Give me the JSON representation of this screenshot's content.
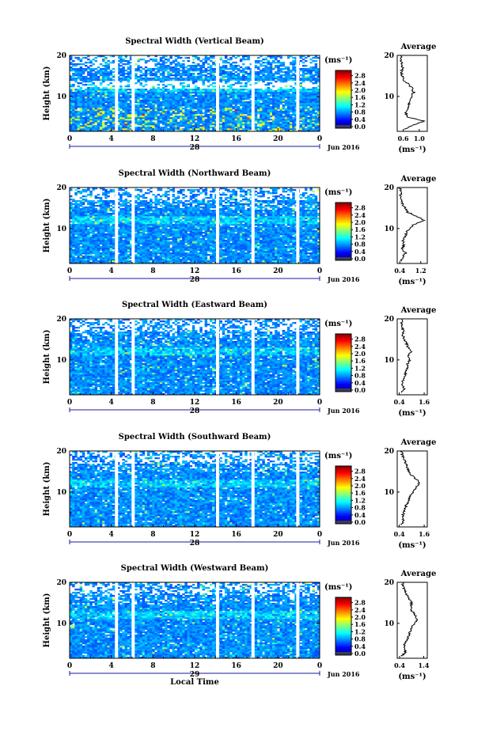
{
  "chart_data": [
    {
      "type": "heatmap",
      "title": "Spectral Width (Vertical Beam)",
      "ylabel": "Height (km)",
      "y_ticks": [
        "20",
        "10"
      ],
      "ylim": [
        1.5,
        20
      ],
      "xlim": [
        0,
        24
      ],
      "x_ticks": [
        "0",
        "4",
        "8",
        "12",
        "16",
        "20",
        "0"
      ],
      "day_label": "28",
      "date_label": "Jun 2016",
      "colorbar": {
        "unit": "(ms⁻¹)",
        "ticks": [
          "0.0",
          "0.4",
          "0.8",
          "1.2",
          "1.6",
          "2.0",
          "2.4",
          "2.8"
        ],
        "range": [
          0,
          3.0
        ]
      },
      "data_gaps_hours": [
        4.5,
        6.1,
        14.2,
        17.6,
        21.9
      ],
      "average": {
        "title": "Average",
        "xlabel": "(ms⁻¹)",
        "x_ticks": [
          "0.6",
          "1.0"
        ],
        "xlim": [
          0.45,
          1.2
        ],
        "y_ticks": [
          "20",
          "10"
        ],
        "profile": {
          "heights_km": [
            2,
            3,
            4,
            5,
            6,
            7,
            8,
            9,
            10,
            11,
            12,
            13,
            14,
            15,
            16,
            17,
            18,
            19,
            20
          ],
          "values": [
            0.62,
            0.85,
            1.12,
            0.7,
            0.66,
            0.7,
            0.74,
            0.78,
            0.8,
            0.86,
            0.82,
            0.72,
            0.62,
            0.58,
            0.55,
            0.58,
            0.56,
            0.54,
            0.55
          ]
        }
      }
    },
    {
      "type": "heatmap",
      "title": "Spectral Width (Northward Beam)",
      "ylabel": "Height (km)",
      "y_ticks": [
        "20",
        "10"
      ],
      "ylim": [
        1.5,
        20
      ],
      "xlim": [
        0,
        24
      ],
      "x_ticks": [
        "0",
        "4",
        "8",
        "12",
        "16",
        "20",
        "0"
      ],
      "day_label": "28",
      "date_label": "Jun 2016",
      "colorbar": {
        "unit": "(ms⁻¹)",
        "ticks": [
          "0.0",
          "0.4",
          "0.8",
          "1.2",
          "1.6",
          "2.0",
          "2.4",
          "2.8"
        ],
        "range": [
          0,
          3.0
        ]
      },
      "data_gaps_hours": [
        4.5,
        6.1,
        14.2,
        17.6,
        21.9
      ],
      "average": {
        "title": "Average",
        "xlabel": "(ms⁻¹)",
        "x_ticks": [
          "0.4",
          "1.2"
        ],
        "xlim": [
          0.3,
          1.45
        ],
        "y_ticks": [
          "20",
          "10"
        ],
        "profile": {
          "heights_km": [
            2,
            3,
            4,
            5,
            6,
            7,
            8,
            9,
            10,
            11,
            12,
            13,
            14,
            15,
            16,
            17,
            18,
            19,
            20
          ],
          "values": [
            0.45,
            0.5,
            0.62,
            0.48,
            0.55,
            0.52,
            0.6,
            0.65,
            0.75,
            0.95,
            1.3,
            1.05,
            0.7,
            0.6,
            0.5,
            0.45,
            0.42,
            0.45,
            0.4
          ]
        }
      }
    },
    {
      "type": "heatmap",
      "title": "Spectral Width (Eastward Beam)",
      "ylabel": "Height (km)",
      "y_ticks": [
        "20",
        "10"
      ],
      "ylim": [
        1.5,
        20
      ],
      "xlim": [
        0,
        24
      ],
      "x_ticks": [
        "0",
        "4",
        "8",
        "12",
        "16",
        "20",
        "0"
      ],
      "day_label": "28",
      "date_label": "Jun 2016",
      "colorbar": {
        "unit": "(ms⁻¹)",
        "ticks": [
          "0.0",
          "0.4",
          "0.8",
          "1.2",
          "1.6",
          "2.0",
          "2.4",
          "2.8"
        ],
        "range": [
          0,
          3.0
        ]
      },
      "data_gaps_hours": [
        4.5,
        6.1,
        14.2,
        17.6,
        21.9
      ],
      "average": {
        "title": "Average",
        "xlabel": "(ms⁻¹)",
        "x_ticks": [
          "0.4",
          "1.6"
        ],
        "xlim": [
          0.3,
          1.75
        ],
        "y_ticks": [
          "20",
          "10"
        ],
        "profile": {
          "heights_km": [
            2,
            3,
            4,
            5,
            6,
            7,
            8,
            9,
            10,
            11,
            12,
            13,
            14,
            15,
            16,
            17,
            18,
            19,
            20
          ],
          "values": [
            0.5,
            0.62,
            0.55,
            0.58,
            0.65,
            0.72,
            0.78,
            0.8,
            0.9,
            0.85,
            0.95,
            0.82,
            0.75,
            0.62,
            0.58,
            0.6,
            0.55,
            0.5,
            0.52
          ]
        }
      }
    },
    {
      "type": "heatmap",
      "title": "Spectral Width (Southward Beam)",
      "ylabel": "Height (km)",
      "y_ticks": [
        "20",
        "10"
      ],
      "ylim": [
        1.5,
        20
      ],
      "xlim": [
        0,
        24
      ],
      "x_ticks": [
        "0",
        "4",
        "8",
        "12",
        "16",
        "20",
        "0"
      ],
      "day_label": "28",
      "date_label": "Jun 2016",
      "colorbar": {
        "unit": "(ms⁻¹)",
        "ticks": [
          "0.0",
          "0.4",
          "0.8",
          "1.2",
          "1.6",
          "2.0",
          "2.4",
          "2.8"
        ],
        "range": [
          0,
          3.0
        ]
      },
      "data_gaps_hours": [
        4.5,
        6.1,
        14.2,
        17.6,
        21.9
      ],
      "average": {
        "title": "Average",
        "xlabel": "(ms⁻¹)",
        "x_ticks": [
          "0.4",
          "1.6"
        ],
        "xlim": [
          0.3,
          1.75
        ],
        "y_ticks": [
          "20",
          "10"
        ],
        "profile": {
          "heights_km": [
            2,
            3,
            4,
            5,
            6,
            7,
            8,
            9,
            10,
            11,
            12,
            13,
            14,
            15,
            16,
            17,
            18,
            19,
            20
          ],
          "values": [
            0.5,
            0.62,
            0.55,
            0.62,
            0.68,
            0.75,
            0.85,
            0.95,
            1.05,
            1.2,
            1.35,
            1.25,
            1.0,
            0.85,
            0.78,
            0.7,
            0.62,
            0.55,
            0.5
          ]
        }
      }
    },
    {
      "type": "heatmap",
      "title": "Spectral Width (Westward Beam)",
      "ylabel": "Height (km)",
      "y_ticks": [
        "20",
        "10"
      ],
      "ylim": [
        1.5,
        20
      ],
      "xlim": [
        0,
        24
      ],
      "x_ticks": [
        "0",
        "4",
        "8",
        "12",
        "16",
        "20",
        "0"
      ],
      "day_label": "29",
      "date_label": "Jun 2016",
      "colorbar": {
        "unit": "(ms⁻¹)",
        "ticks": [
          "0.0",
          "0.4",
          "0.8",
          "1.2",
          "1.6",
          "2.0",
          "2.4",
          "2.8"
        ],
        "range": [
          0,
          3.0
        ]
      },
      "data_gaps_hours": [
        4.5,
        6.1,
        14.2,
        17.6,
        21.9
      ],
      "xlabel": "Local Time",
      "average": {
        "title": "Average",
        "xlabel": "(ms⁻¹)",
        "x_ticks": [
          "0.4",
          "1.4"
        ],
        "xlim": [
          0.3,
          1.55
        ],
        "y_ticks": [
          "20",
          "10"
        ],
        "profile": {
          "heights_km": [
            2,
            3,
            4,
            5,
            6,
            7,
            8,
            9,
            10,
            11,
            12,
            13,
            14,
            15,
            16,
            17,
            18,
            19,
            20
          ],
          "values": [
            0.5,
            0.65,
            0.58,
            0.62,
            0.7,
            0.78,
            0.85,
            0.9,
            1.0,
            1.15,
            1.05,
            0.92,
            0.85,
            0.9,
            0.8,
            0.7,
            0.62,
            0.55,
            0.52
          ]
        }
      }
    }
  ]
}
